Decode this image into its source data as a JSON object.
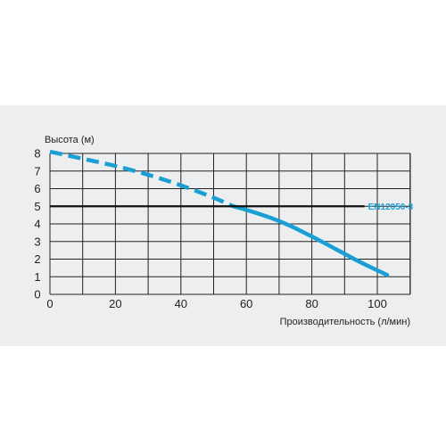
{
  "chart_data": {
    "type": "line",
    "ylabel": "Высота (м)",
    "xlabel": "Производительность (л/мин)",
    "xlim": [
      0,
      110
    ],
    "ylim": [
      0,
      8
    ],
    "x_ticks": [
      0,
      20,
      40,
      60,
      80,
      100
    ],
    "y_ticks": [
      0,
      1,
      2,
      3,
      4,
      5,
      6,
      7,
      8
    ],
    "grid": true,
    "colors": {
      "curve": "#1a9fd4",
      "reference": "#111111",
      "grid": "#222222"
    },
    "series": [
      {
        "style": "dashed",
        "points": [
          [
            0,
            8.1
          ],
          [
            10,
            7.7
          ],
          [
            20,
            7.3
          ],
          [
            30,
            6.8
          ],
          [
            40,
            6.2
          ],
          [
            50,
            5.5
          ],
          [
            56,
            5.0
          ]
        ]
      },
      {
        "style": "solid",
        "points": [
          [
            56,
            5.0
          ],
          [
            60,
            4.8
          ],
          [
            70,
            4.2
          ],
          [
            80,
            3.3
          ],
          [
            90,
            2.3
          ],
          [
            95,
            1.8
          ],
          [
            103,
            1.1
          ]
        ]
      }
    ],
    "reference_line": {
      "label": "EN12050-3",
      "y": 5,
      "x_end": 95
    }
  }
}
